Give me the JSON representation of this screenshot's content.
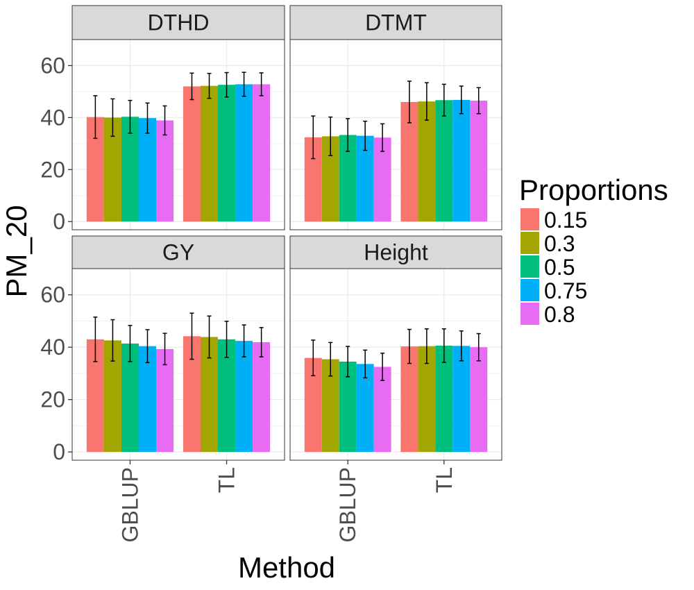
{
  "chart_data": {
    "type": "bar",
    "xlabel": "Method",
    "ylabel": "PM_20",
    "ylim": [
      0,
      70
    ],
    "y_ticks": [
      0,
      20,
      40,
      60
    ],
    "categories": [
      "GBLUP",
      "TL"
    ],
    "grid": true,
    "legend": {
      "title": "Proportions",
      "position": "right",
      "entries": [
        "0.15",
        "0.3",
        "0.5",
        "0.75",
        "0.8"
      ],
      "colors": [
        "#F8766D",
        "#A3A500",
        "#00BF7D",
        "#00B0F6",
        "#E76BF3"
      ]
    },
    "panels": [
      {
        "title": "DTHD",
        "series": [
          {
            "name": "0.15",
            "values": [
              40.2,
              52.0
            ],
            "errors": [
              8.2,
              5.1
            ]
          },
          {
            "name": "0.3",
            "values": [
              40.0,
              52.2
            ],
            "errors": [
              7.2,
              4.8
            ]
          },
          {
            "name": "0.5",
            "values": [
              40.3,
              52.6
            ],
            "errors": [
              6.3,
              4.7
            ]
          },
          {
            "name": "0.75",
            "values": [
              39.8,
              52.8
            ],
            "errors": [
              5.8,
              4.6
            ]
          },
          {
            "name": "0.8",
            "values": [
              38.9,
              52.8
            ],
            "errors": [
              5.6,
              4.4
            ]
          }
        ]
      },
      {
        "title": "DTMT",
        "series": [
          {
            "name": "0.15",
            "values": [
              32.4,
              46.0
            ],
            "errors": [
              8.2,
              8.0
            ]
          },
          {
            "name": "0.3",
            "values": [
              32.8,
              46.2
            ],
            "errors": [
              7.4,
              7.2
            ]
          },
          {
            "name": "0.5",
            "values": [
              33.3,
              46.7
            ],
            "errors": [
              6.3,
              6.1
            ]
          },
          {
            "name": "0.75",
            "values": [
              33.0,
              46.8
            ],
            "errors": [
              5.6,
              5.3
            ]
          },
          {
            "name": "0.8",
            "values": [
              32.3,
              46.5
            ],
            "errors": [
              5.3,
              5.0
            ]
          }
        ]
      },
      {
        "title": "GY",
        "series": [
          {
            "name": "0.15",
            "values": [
              43.0,
              44.2
            ],
            "errors": [
              8.5,
              8.8
            ]
          },
          {
            "name": "0.3",
            "values": [
              42.6,
              43.9
            ],
            "errors": [
              7.9,
              8.0
            ]
          },
          {
            "name": "0.5",
            "values": [
              41.4,
              43.0
            ],
            "errors": [
              6.9,
              6.9
            ]
          },
          {
            "name": "0.75",
            "values": [
              40.4,
              42.4
            ],
            "errors": [
              6.3,
              6.1
            ]
          },
          {
            "name": "0.8",
            "values": [
              39.3,
              41.9
            ],
            "errors": [
              6.0,
              5.6
            ]
          }
        ]
      },
      {
        "title": "Height",
        "series": [
          {
            "name": "0.15",
            "values": [
              35.9,
              40.3
            ],
            "errors": [
              6.8,
              6.5
            ]
          },
          {
            "name": "0.3",
            "values": [
              35.4,
              40.4
            ],
            "errors": [
              6.4,
              6.6
            ]
          },
          {
            "name": "0.5",
            "values": [
              34.5,
              40.6
            ],
            "errors": [
              5.8,
              6.4
            ]
          },
          {
            "name": "0.75",
            "values": [
              33.6,
              40.5
            ],
            "errors": [
              5.3,
              5.7
            ]
          },
          {
            "name": "0.8",
            "values": [
              32.5,
              40.0
            ],
            "errors": [
              5.2,
              5.2
            ]
          }
        ]
      }
    ]
  }
}
